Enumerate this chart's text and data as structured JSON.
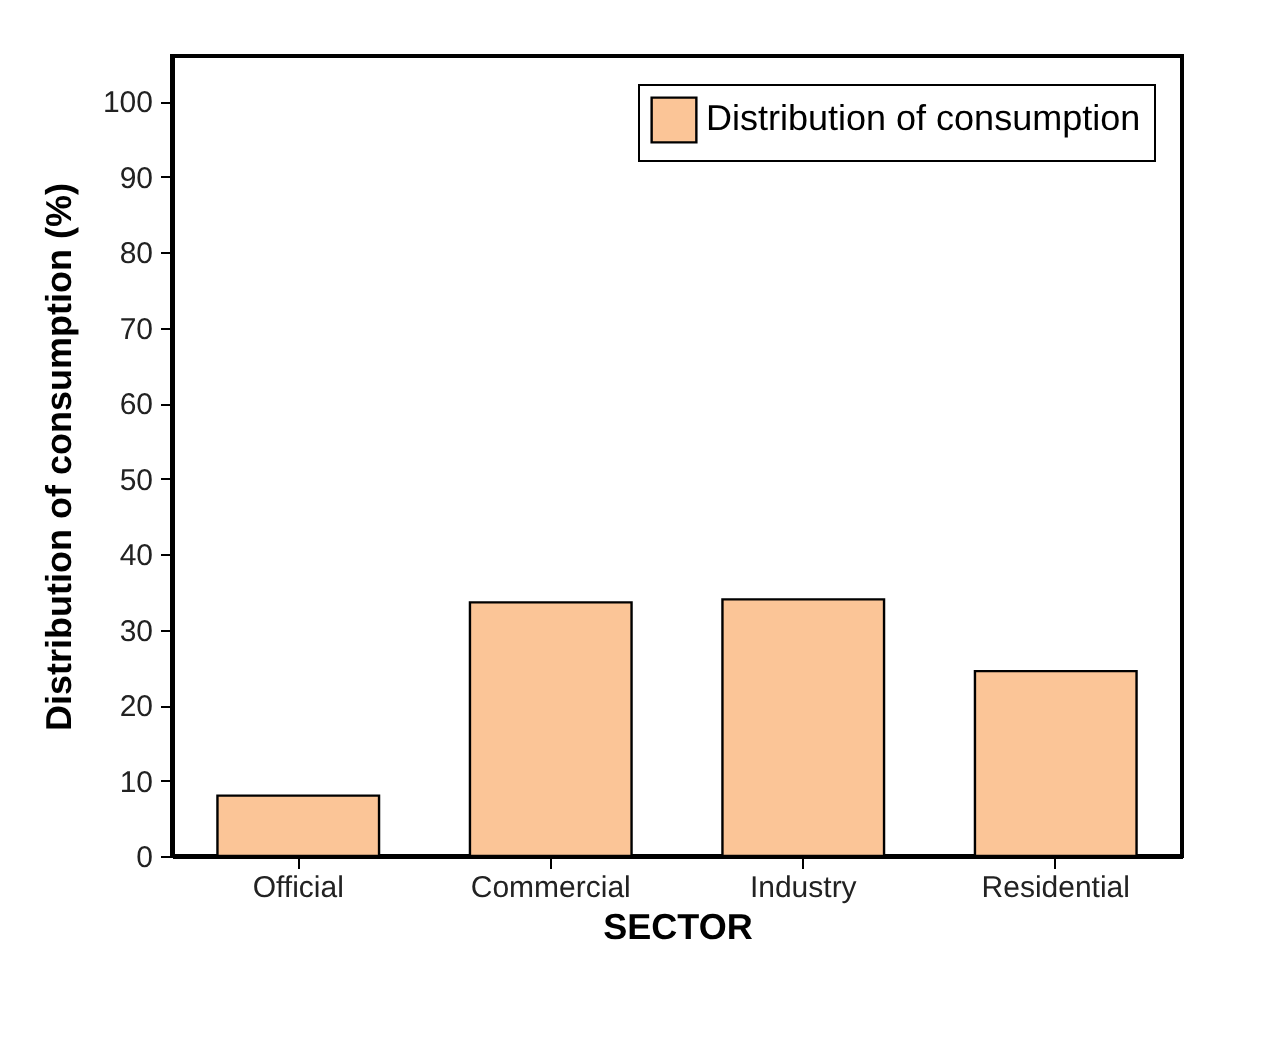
{
  "chart_data": {
    "type": "bar",
    "xlabel": "SECTOR",
    "ylabel": "Distribution of consumption (%)",
    "categories": [
      "Official",
      "Commercial",
      "Industry",
      "Residential"
    ],
    "series": [
      {
        "name": "Distribution of consumption",
        "color": "#fbc597",
        "values": [
          8,
          33.6,
          34,
          24.5
        ]
      }
    ],
    "ylim": [
      0,
      106
    ],
    "yticks": [
      0,
      10,
      20,
      30,
      40,
      50,
      60,
      70,
      80,
      90,
      100
    ],
    "grid": false,
    "legend": "top right"
  }
}
